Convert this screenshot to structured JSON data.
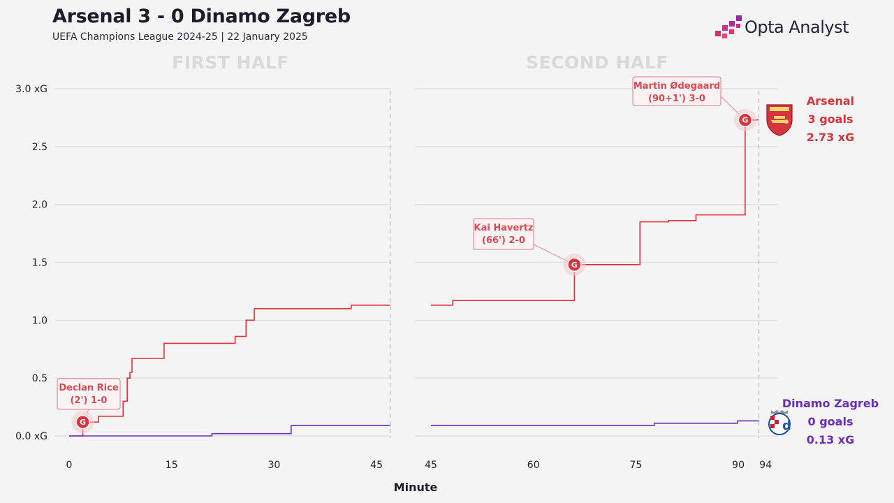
{
  "header": {
    "title": "Arsenal 3 - 0 Dinamo Zagreb",
    "subtitle": "UEFA Champions League 2024-25 | 22 January 2025",
    "brand": "Opta Analyst"
  },
  "colors": {
    "arsenal": "#d6343f",
    "dinamo": "#6a2fb3",
    "annotation": "#d94b53",
    "grid": "#dddddd",
    "half_title": "#d9d9d9"
  },
  "chart_data": {
    "type": "line",
    "step": true,
    "title": "Arsenal 3 - 0 Dinamo Zagreb",
    "subtitle": "UEFA Champions League 2024-25 | 22 January 2025",
    "xlabel": "Minute",
    "ylabel": "",
    "panels": [
      {
        "name": "FIRST HALF",
        "xlim": [
          0,
          46
        ],
        "xticks": [
          "0",
          "15",
          "30",
          "45"
        ],
        "xtick_values": [
          0,
          15,
          30,
          45
        ],
        "end_minute": 47
      },
      {
        "name": "SECOND HALF",
        "xlim": [
          45,
          94
        ],
        "xticks": [
          "45",
          "60",
          "75",
          "90",
          "94"
        ],
        "xtick_values": [
          45,
          60,
          75,
          90,
          94
        ],
        "end_minute": 93
      }
    ],
    "ylim": [
      0,
      3.0
    ],
    "yticks": [
      "0.0 xG",
      "0.5",
      "1.0",
      "1.5",
      "2.0",
      "2.5",
      "3.0 xG"
    ],
    "ytick_values": [
      0,
      0.5,
      1.0,
      1.5,
      2.0,
      2.5,
      3.0
    ],
    "grid": true,
    "series": [
      {
        "name": "Arsenal",
        "goals_label": "3 goals",
        "xg_label": "2.73 xG",
        "color": "#d6343f",
        "first_half": [
          [
            0,
            0
          ],
          [
            2,
            0.12
          ],
          [
            4.3,
            0.17
          ],
          [
            7.9,
            0.3
          ],
          [
            8.5,
            0.5
          ],
          [
            8.9,
            0.55
          ],
          [
            9.2,
            0.67
          ],
          [
            13.9,
            0.8
          ],
          [
            24.3,
            0.86
          ],
          [
            25.9,
            1.0
          ],
          [
            27.1,
            1.1
          ],
          [
            41.3,
            1.13
          ],
          [
            47,
            1.13
          ]
        ],
        "second_half": [
          [
            45,
            1.13
          ],
          [
            48.2,
            1.17
          ],
          [
            66,
            1.48
          ],
          [
            75.6,
            1.85
          ],
          [
            79.8,
            1.86
          ],
          [
            83.8,
            1.91
          ],
          [
            91,
            2.73
          ],
          [
            93,
            2.73
          ]
        ]
      },
      {
        "name": "Dinamo Zagreb",
        "goals_label": "0 goals",
        "xg_label": "0.13 xG",
        "color": "#6a2fb3",
        "first_half": [
          [
            0,
            0
          ],
          [
            20.9,
            0.02
          ],
          [
            32.5,
            0.09
          ],
          [
            47,
            0.09
          ]
        ],
        "second_half": [
          [
            45,
            0.09
          ],
          [
            77.7,
            0.11
          ],
          [
            89.9,
            0.13
          ],
          [
            93,
            0.13
          ]
        ]
      }
    ],
    "goals": [
      {
        "minute": 2,
        "half": "first",
        "xg": 0.12,
        "line1": "Declan Rice",
        "line2": "(2') 1-0",
        "marker": "G"
      },
      {
        "minute": 66,
        "half": "second",
        "xg": 1.48,
        "line1": "Kai Havertz",
        "line2": "(66') 2-0",
        "marker": "G"
      },
      {
        "minute": 91,
        "half": "second",
        "xg": 2.73,
        "line1": "Martin Ødegaard",
        "line2": "(90+1') 3-0",
        "marker": "G"
      }
    ],
    "legend_placement": "right, at line ends"
  }
}
